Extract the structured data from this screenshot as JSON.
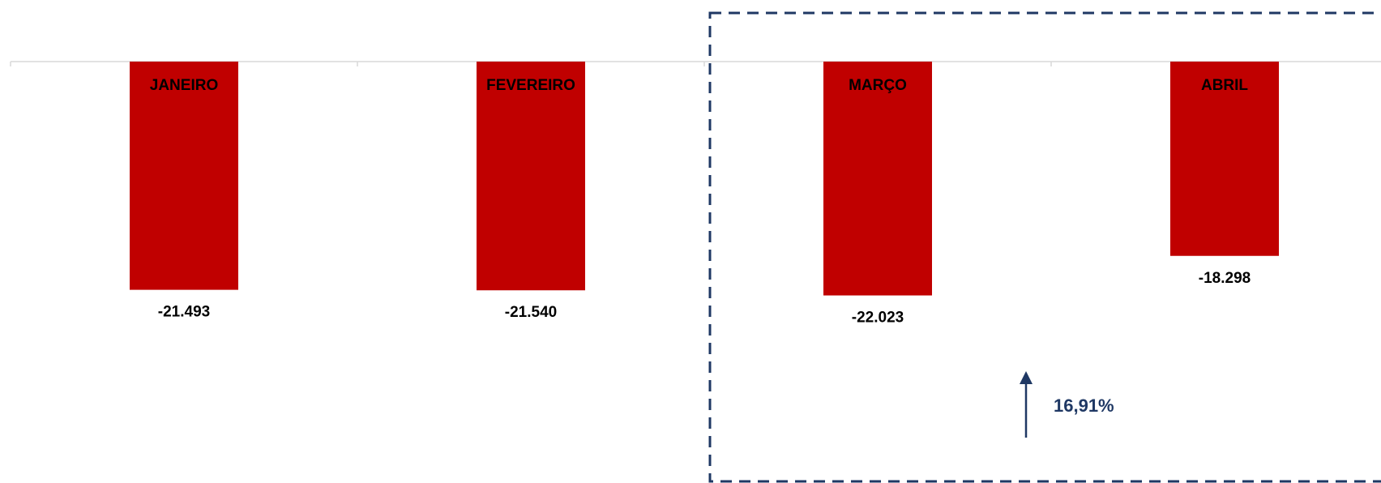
{
  "chart_data": {
    "type": "bar",
    "categories": [
      "JANEIRO",
      "FEVEREIRO",
      "MARÇO",
      "ABRIL"
    ],
    "values": [
      -21493,
      -21540,
      -22023,
      -18298
    ],
    "value_labels": [
      "-21.493",
      "-21.540",
      "-22.023",
      "-18.298"
    ],
    "color": "#c00000",
    "ylim": [
      -39000,
      0
    ],
    "annotation": "16,91%"
  }
}
